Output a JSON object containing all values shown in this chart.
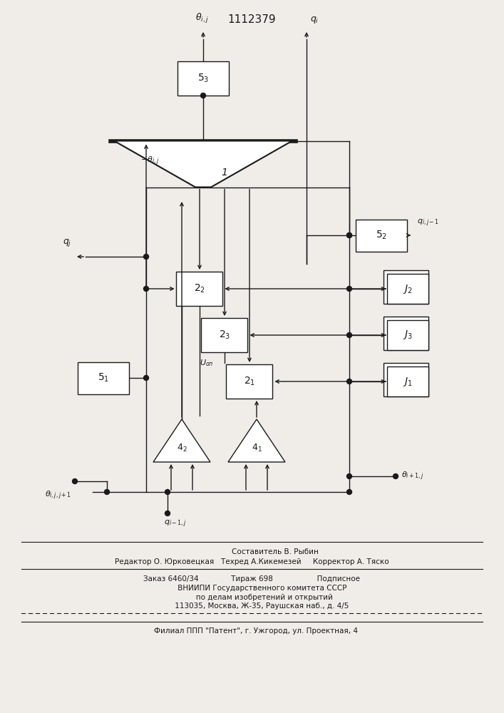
{
  "patent_number": "1112379",
  "bg_color": "#f0ede8",
  "lc": "#1a1a1a",
  "bc": "#ffffff",
  "footer1": "                    Составитель В. Рыбин",
  "footer2": "Редактор О. Юрковецкая   Техред А.Кикемезей     Корректор А. Тяско",
  "footer3": "Заказ 6460/34              Тираж 698                   Подписное",
  "footer4": "         ВНИИПИ Государственного комитета СССР",
  "footer5": "           по делам изобретений и открытий",
  "footer6": "         113035, Москва, Ж-35, Раушская наб., д. 4/5",
  "footer7": "    Филиал ППП \"Патент\", г. Ужгород, ул. Проектная, 4"
}
